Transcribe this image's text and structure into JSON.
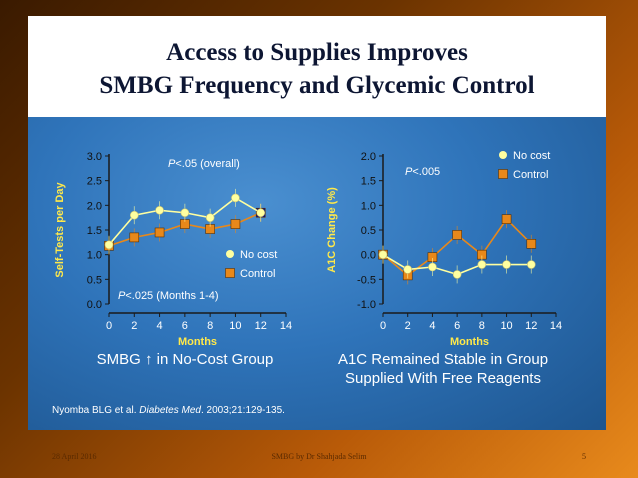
{
  "title_line1": "Access to Supplies Improves",
  "title_line2": "SMBG Frequency and Glycemic Control",
  "caption_left": "SMBG ↑ in No-Cost Group",
  "caption_right_line1": "A1C Remained Stable in Group",
  "caption_right_line2": "Supplied With Free Reagents",
  "citation_prefix": "Nyomba BLG et al. ",
  "citation_journal": "Diabetes Med",
  "citation_suffix": ". 2003;21:129-135.",
  "footer": {
    "date": "28 April 2016",
    "center": "SMBG by Dr Shahjada Selim",
    "page": "5"
  },
  "colors": {
    "no_cost": "#ffffa0",
    "control": "#e8881a",
    "axis": "#1a1a1a",
    "slide_bg": "#2f74ba"
  },
  "chart_data": [
    {
      "type": "line",
      "xlabel": "Months",
      "ylabel": "Self-Tests per Day",
      "xlim": [
        0,
        14
      ],
      "ylim": [
        0,
        3
      ],
      "xticks": [
        "0",
        "2",
        "4",
        "6",
        "8",
        "10",
        "12",
        "14"
      ],
      "yticks": [
        "0.0",
        "0.5",
        "1.0",
        "1.5",
        "2.0",
        "2.5",
        "3.0"
      ],
      "annotations": [
        "P<.05 (overall)",
        "P<.025 (Months 1-4)"
      ],
      "legend": "right",
      "series": [
        {
          "name": "No cost",
          "x": [
            0,
            2,
            4,
            6,
            8,
            10,
            12
          ],
          "values": [
            1.2,
            1.8,
            1.9,
            1.85,
            1.75,
            2.15,
            1.85
          ]
        },
        {
          "name": "Control",
          "x": [
            0,
            2,
            4,
            6,
            8,
            10,
            12
          ],
          "values": [
            1.18,
            1.35,
            1.45,
            1.62,
            1.52,
            1.62,
            1.85
          ]
        }
      ]
    },
    {
      "type": "line",
      "xlabel": "Months",
      "ylabel": "A1C Change (%)",
      "xlim": [
        0,
        14
      ],
      "ylim": [
        -1.0,
        2.0
      ],
      "xticks": [
        "0",
        "2",
        "4",
        "6",
        "8",
        "10",
        "12",
        "14"
      ],
      "yticks": [
        "-1.0",
        "-0.5",
        "0.0",
        "0.5",
        "1.0",
        "1.5",
        "2.0"
      ],
      "annotations": [
        "P<.005"
      ],
      "legend": "top-right",
      "series": [
        {
          "name": "No cost",
          "x": [
            0,
            2,
            4,
            6,
            8,
            10,
            12
          ],
          "values": [
            0.0,
            -0.3,
            -0.25,
            -0.4,
            -0.2,
            -0.2,
            -0.2
          ]
        },
        {
          "name": "Control",
          "x": [
            0,
            2,
            4,
            6,
            8,
            10,
            12
          ],
          "values": [
            0.0,
            -0.42,
            -0.05,
            0.4,
            0.0,
            0.72,
            0.22
          ]
        }
      ]
    }
  ]
}
